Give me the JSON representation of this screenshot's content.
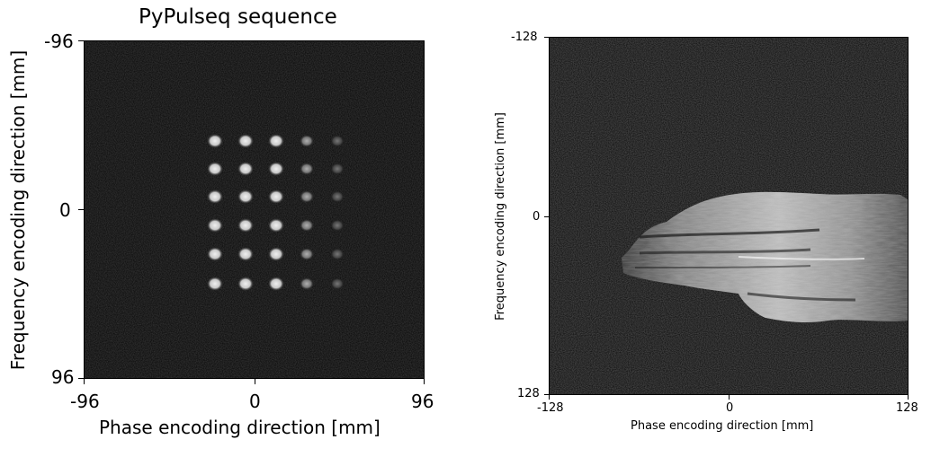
{
  "left_panel": {
    "title": "PyPulseq sequence",
    "xlabel": "Phase encoding direction [mm]",
    "ylabel": "Frequency encoding direction [mm]",
    "xticks": [
      "-96",
      "0",
      "96"
    ],
    "yticks": [
      "-96",
      "0",
      "96"
    ],
    "image_content": "phantom-dot-grid"
  },
  "right_panel": {
    "xlabel": "Phase encoding direction [mm]",
    "ylabel": "Frequency encoding direction [mm]",
    "xticks": [
      "-128",
      "0",
      "128"
    ],
    "yticks": [
      "-128",
      "0",
      "128"
    ],
    "image_content": "hand-mri"
  },
  "colors": {
    "background": "#050505",
    "signal": "#e8e8e8"
  }
}
